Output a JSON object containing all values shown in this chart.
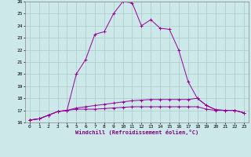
{
  "x": [
    0,
    1,
    2,
    3,
    4,
    5,
    6,
    7,
    8,
    9,
    10,
    11,
    12,
    13,
    14,
    15,
    16,
    17,
    18,
    19,
    20,
    21,
    22,
    23
  ],
  "line1": [
    16.2,
    16.3,
    16.6,
    16.9,
    17.0,
    17.1,
    17.1,
    17.1,
    17.15,
    17.2,
    17.25,
    17.3,
    17.3,
    17.3,
    17.3,
    17.3,
    17.3,
    17.3,
    17.3,
    17.1,
    17.0,
    17.0,
    17.0,
    16.8
  ],
  "line2": [
    16.2,
    16.3,
    16.6,
    16.9,
    17.0,
    17.2,
    17.3,
    17.4,
    17.5,
    17.6,
    17.7,
    17.8,
    17.85,
    17.9,
    17.9,
    17.9,
    17.9,
    17.9,
    18.0,
    17.4,
    17.05,
    17.0,
    17.0,
    16.8
  ],
  "line3": [
    16.2,
    16.3,
    16.6,
    16.9,
    17.0,
    20.0,
    21.2,
    23.3,
    23.5,
    25.0,
    26.0,
    25.9,
    24.0,
    24.5,
    23.8,
    23.7,
    22.0,
    19.4,
    18.0,
    17.4,
    17.05,
    17.0,
    17.0,
    16.8
  ],
  "xlabel": "Windchill (Refroidissement éolien,°C)",
  "xlim": [
    -0.5,
    23.5
  ],
  "ylim": [
    16,
    26
  ],
  "yticks": [
    16,
    17,
    18,
    19,
    20,
    21,
    22,
    23,
    24,
    25,
    26
  ],
  "xticks": [
    0,
    1,
    2,
    3,
    4,
    5,
    6,
    7,
    8,
    9,
    10,
    11,
    12,
    13,
    14,
    15,
    16,
    17,
    18,
    19,
    20,
    21,
    22,
    23
  ],
  "line_color": "#990099",
  "bg_color": "#cce8e8",
  "grid_color": "#aacccc"
}
